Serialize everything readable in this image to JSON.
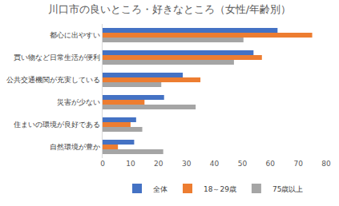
{
  "chart_data": {
    "type": "bar",
    "orientation": "horizontal",
    "title": "川口市の良いところ・好きなところ（女性/年齢別）",
    "categories": [
      "都心に出やすい",
      "買い物など日常生活が便利",
      "公共交通機関が充実している",
      "災害が少ない",
      "住まいの環境が良好である",
      "自然環境が豊か"
    ],
    "series": [
      {
        "name": "全体",
        "color": "#4472c4",
        "values": [
          62.6,
          54,
          28.7,
          22,
          12,
          11.3
        ]
      },
      {
        "name": "18～29歳",
        "color": "#ed7d31",
        "values": [
          75,
          57,
          35,
          15,
          10,
          5.5
        ]
      },
      {
        "name": "75歳以上",
        "color": "#a5a5a5",
        "values": [
          50.4,
          47,
          21,
          33.3,
          14.2,
          21.7
        ]
      }
    ],
    "xlim": [
      0,
      80
    ],
    "xticks": [
      0,
      10,
      20,
      30,
      40,
      50,
      60,
      70,
      80
    ],
    "grid": false,
    "legend": "bottom"
  }
}
